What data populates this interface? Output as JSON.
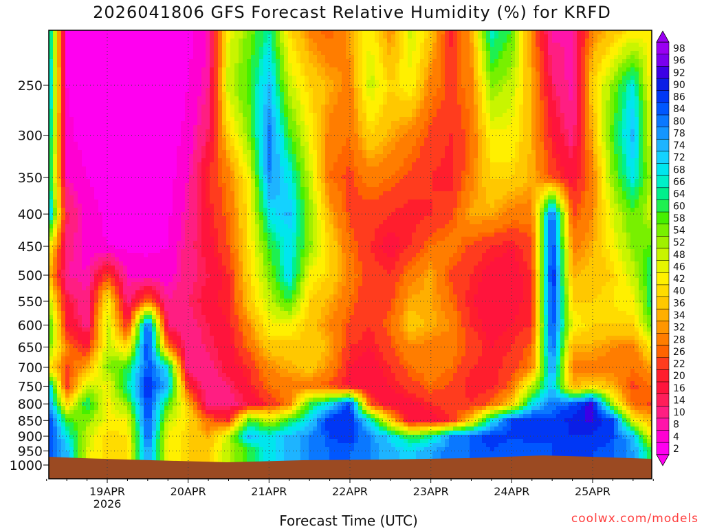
{
  "title": "2026041806 GFS Forecast Relative Humidity (%) for KRFD",
  "credit": "coolwx.com/models",
  "colors": {
    "ground": "#9b4a22",
    "frame": "#000000",
    "grid": "#444444"
  },
  "chart_data": {
    "type": "heatmap",
    "title": "2026041806 GFS Forecast Relative Humidity (%) for KRFD",
    "xlabel": "Forecast Time (UTC)",
    "ylabel": "",
    "x_ticks": [
      "19APR",
      "20APR",
      "21APR",
      "22APR",
      "23APR",
      "24APR",
      "25APR"
    ],
    "x_tick_sublabel": "2026",
    "y_ticks": [
      250,
      300,
      350,
      400,
      450,
      500,
      550,
      600,
      650,
      700,
      750,
      800,
      850,
      900,
      950,
      1000
    ],
    "y_axis_scale": "log pressure (hPa)",
    "grid": true,
    "colorbar": {
      "labels": [
        98,
        96,
        92,
        90,
        86,
        84,
        80,
        78,
        74,
        72,
        68,
        66,
        64,
        60,
        58,
        54,
        52,
        48,
        46,
        42,
        40,
        36,
        34,
        32,
        28,
        26,
        22,
        20,
        16,
        14,
        10,
        8,
        4,
        2
      ],
      "colors": [
        "#9a00f2",
        "#7a00ee",
        "#3c00e6",
        "#0a1ee6",
        "#0037f5",
        "#0057ff",
        "#0a78ff",
        "#1496ff",
        "#1eb4ff",
        "#14d2ff",
        "#00e6ee",
        "#00f0c8",
        "#00f08c",
        "#1ef050",
        "#46f000",
        "#78f000",
        "#a0f000",
        "#c8f500",
        "#e6f500",
        "#fff000",
        "#ffdc00",
        "#ffc800",
        "#ffaf00",
        "#ff9600",
        "#ff7d00",
        "#ff6400",
        "#ff3c1e",
        "#ff1e2d",
        "#ff143c",
        "#ff1e5a",
        "#ff1e82",
        "#ff14aa",
        "#ff00d2",
        "#ff00f0"
      ]
    },
    "rh_field": {
      "days": [
        18.25,
        18.5,
        18.75,
        19.0,
        19.25,
        19.5,
        19.75,
        20.0,
        20.25,
        20.5,
        20.75,
        21.0,
        21.25,
        21.5,
        21.75,
        22.0,
        22.25,
        22.5,
        22.75,
        23.0,
        23.25,
        23.5,
        23.75,
        24.0,
        24.25,
        24.5,
        24.75,
        25.0,
        25.25,
        25.5,
        25.75
      ],
      "levels": [
        200,
        250,
        300,
        350,
        400,
        450,
        500,
        550,
        600,
        650,
        700,
        750,
        800,
        850,
        900,
        950
      ],
      "rows": [
        [
          80,
          3,
          2,
          2,
          2,
          2,
          2,
          2,
          8,
          45,
          55,
          65,
          40,
          30,
          25,
          35,
          45,
          30,
          50,
          40,
          20,
          35,
          70,
          60,
          30,
          8,
          10,
          30,
          35,
          40,
          45
        ],
        [
          85,
          4,
          2,
          2,
          2,
          2,
          2,
          4,
          10,
          50,
          60,
          75,
          50,
          40,
          35,
          30,
          50,
          40,
          45,
          30,
          25,
          30,
          55,
          50,
          35,
          15,
          8,
          40,
          55,
          70,
          40
        ],
        [
          80,
          5,
          2,
          2,
          2,
          2,
          2,
          5,
          15,
          40,
          55,
          82,
          60,
          45,
          30,
          28,
          40,
          35,
          30,
          25,
          22,
          28,
          45,
          45,
          35,
          20,
          12,
          35,
          60,
          75,
          45
        ],
        [
          75,
          8,
          4,
          2,
          2,
          2,
          2,
          8,
          22,
          30,
          45,
          80,
          70,
          50,
          28,
          25,
          30,
          28,
          25,
          22,
          20,
          30,
          40,
          40,
          35,
          25,
          18,
          30,
          55,
          70,
          50
        ],
        [
          85,
          15,
          6,
          3,
          2,
          2,
          3,
          10,
          20,
          28,
          42,
          70,
          75,
          55,
          35,
          25,
          24,
          22,
          20,
          22,
          25,
          35,
          35,
          30,
          30,
          85,
          25,
          32,
          48,
          58,
          48
        ],
        [
          50,
          12,
          6,
          4,
          3,
          3,
          4,
          12,
          18,
          26,
          42,
          60,
          70,
          55,
          40,
          28,
          22,
          18,
          22,
          28,
          30,
          25,
          22,
          20,
          25,
          90,
          30,
          35,
          45,
          55,
          60
        ],
        [
          40,
          10,
          8,
          25,
          8,
          6,
          6,
          12,
          16,
          22,
          40,
          55,
          72,
          45,
          40,
          30,
          24,
          22,
          30,
          35,
          25,
          22,
          18,
          18,
          22,
          92,
          35,
          38,
          40,
          50,
          65
        ],
        [
          55,
          18,
          10,
          45,
          12,
          30,
          10,
          14,
          18,
          22,
          38,
          50,
          60,
          40,
          35,
          28,
          22,
          25,
          35,
          35,
          28,
          20,
          18,
          18,
          22,
          90,
          40,
          40,
          42,
          45,
          65
        ],
        [
          65,
          20,
          12,
          50,
          20,
          86,
          12,
          12,
          16,
          20,
          32,
          45,
          45,
          38,
          32,
          25,
          22,
          28,
          38,
          35,
          32,
          22,
          18,
          20,
          22,
          88,
          45,
          40,
          40,
          40,
          60
        ],
        [
          60,
          30,
          20,
          50,
          40,
          90,
          30,
          10,
          15,
          18,
          28,
          38,
          38,
          40,
          35,
          22,
          20,
          25,
          32,
          30,
          30,
          25,
          20,
          22,
          28,
          85,
          35,
          35,
          32,
          30,
          45
        ],
        [
          45,
          25,
          35,
          55,
          60,
          86,
          70,
          10,
          12,
          18,
          22,
          32,
          35,
          38,
          32,
          20,
          18,
          22,
          28,
          30,
          28,
          22,
          20,
          24,
          30,
          80,
          30,
          30,
          30,
          28,
          35
        ],
        [
          80,
          22,
          50,
          45,
          65,
          90,
          75,
          22,
          10,
          14,
          20,
          28,
          30,
          30,
          25,
          18,
          16,
          20,
          24,
          28,
          25,
          20,
          20,
          28,
          50,
          75,
          35,
          40,
          35,
          25,
          28
        ],
        [
          84,
          40,
          65,
          45,
          55,
          88,
          60,
          38,
          10,
          12,
          16,
          22,
          30,
          60,
          70,
          88,
          25,
          16,
          18,
          22,
          24,
          22,
          28,
          40,
          70,
          82,
          85,
          95,
          50,
          28,
          25
        ],
        [
          92,
          60,
          55,
          45,
          45,
          88,
          50,
          42,
          28,
          22,
          60,
          50,
          60,
          72,
          90,
          90,
          70,
          40,
          16,
          18,
          22,
          40,
          70,
          88,
          90,
          86,
          92,
          92,
          88,
          45,
          35
        ],
        [
          90,
          70,
          50,
          40,
          42,
          85,
          45,
          40,
          35,
          50,
          75,
          70,
          75,
          80,
          86,
          88,
          80,
          72,
          60,
          65,
          80,
          84,
          88,
          86,
          88,
          86,
          90,
          90,
          86,
          75,
          40
        ],
        [
          88,
          75,
          48,
          40,
          42,
          80,
          45,
          40,
          38,
          52,
          60,
          70,
          76,
          80,
          84,
          84,
          80,
          76,
          72,
          78,
          82,
          84,
          86,
          84,
          84,
          86,
          88,
          86,
          84,
          78,
          60
        ]
      ]
    }
  }
}
